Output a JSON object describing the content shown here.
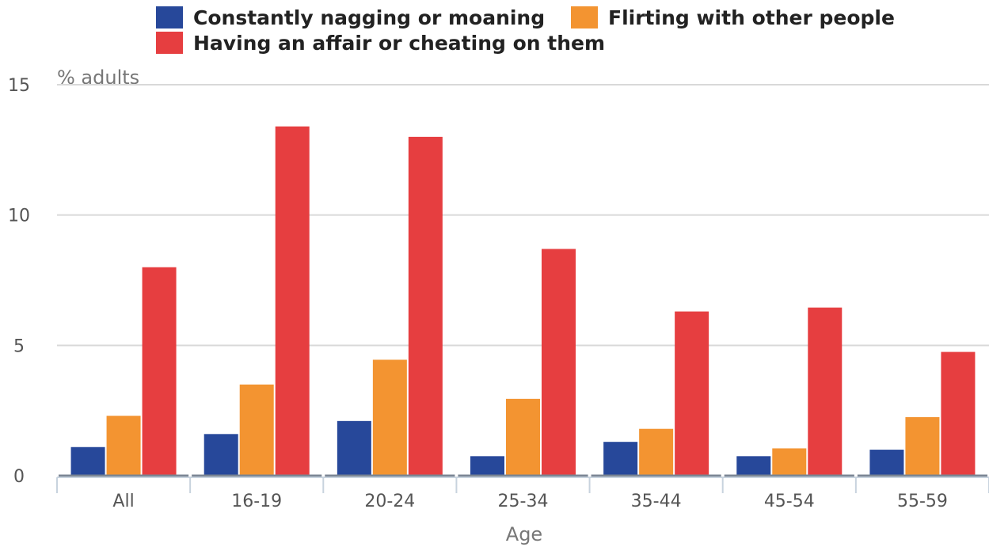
{
  "chart_data": {
    "type": "bar",
    "title": "",
    "xlabel": "Age",
    "ylabel": "% adults",
    "ylim": [
      0,
      15
    ],
    "yticks": [
      0,
      5,
      10,
      15
    ],
    "grid": true,
    "legend_position": "top",
    "categories": [
      "All",
      "16-19",
      "20-24",
      "25-34",
      "35-44",
      "45-54",
      "55-59"
    ],
    "series": [
      {
        "name": "Constantly nagging or moaning",
        "color": "#27489a",
        "values": [
          1.1,
          1.6,
          2.1,
          0.75,
          1.3,
          0.75,
          1.0
        ]
      },
      {
        "name": "Flirting with other people",
        "color": "#f39431",
        "values": [
          2.3,
          3.5,
          4.45,
          2.95,
          1.8,
          1.05,
          2.25
        ]
      },
      {
        "name": "Having an affair or cheating on them",
        "color": "#e63e40",
        "values": [
          8.0,
          13.4,
          13.0,
          8.7,
          6.3,
          6.45,
          4.75
        ]
      }
    ]
  }
}
